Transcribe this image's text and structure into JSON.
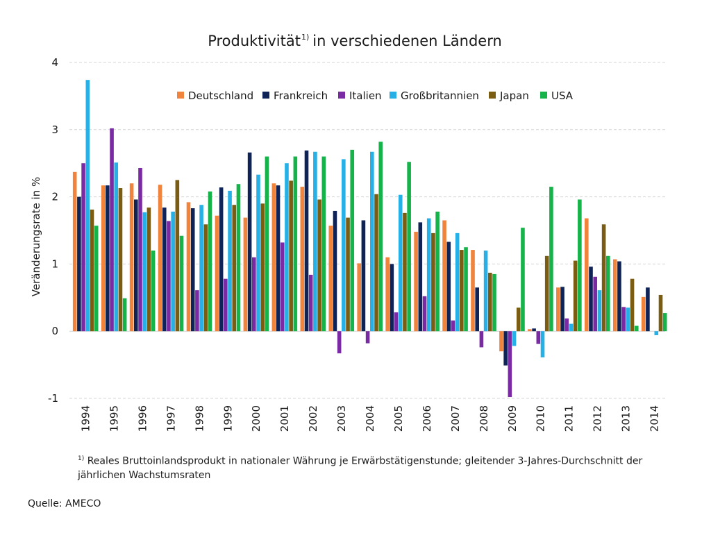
{
  "chart_data": {
    "type": "bar",
    "title": "Produktivität",
    "title_superscript": "1)",
    "title_rest": "in verschiedenen Ländern",
    "ylabel": "Veränderungsrate in %",
    "xlabel": "",
    "ylim": [
      -1,
      4
    ],
    "yticks": [
      -1,
      0,
      1,
      2,
      3,
      4
    ],
    "grid": "horizontal dashed",
    "legend_position": "top",
    "categories": [
      "1994",
      "1995",
      "1996",
      "1997",
      "1998",
      "1999",
      "2000",
      "2001",
      "2002",
      "2003",
      "2004",
      "2005",
      "2006",
      "2007",
      "2008",
      "2009",
      "2010",
      "2011",
      "2012",
      "2013",
      "2014"
    ],
    "series": [
      {
        "name": "Deutschland",
        "color": "#f0843c",
        "values": [
          2.37,
          2.17,
          2.2,
          2.18,
          1.92,
          1.72,
          1.69,
          2.2,
          2.15,
          1.57,
          1.01,
          1.1,
          1.48,
          1.65,
          1.21,
          -0.3,
          0.03,
          0.65,
          1.68,
          1.07,
          0.51
        ]
      },
      {
        "name": "Frankreich",
        "color": "#0f2357",
        "values": [
          2.0,
          2.17,
          1.96,
          1.84,
          1.83,
          2.14,
          2.66,
          2.17,
          2.69,
          1.79,
          1.65,
          1.0,
          1.62,
          1.33,
          0.65,
          -0.51,
          0.04,
          0.66,
          0.96,
          1.04,
          0.65
        ]
      },
      {
        "name": "Italien",
        "color": "#7a2ba3",
        "values": [
          2.5,
          3.02,
          2.43,
          1.64,
          0.61,
          0.78,
          1.1,
          1.32,
          0.84,
          -0.33,
          -0.18,
          0.28,
          0.52,
          0.16,
          -0.24,
          -0.98,
          -0.19,
          0.19,
          0.81,
          0.36,
          0.0
        ]
      },
      {
        "name": "Großbritannien",
        "color": "#26b0e6",
        "values": [
          3.74,
          2.51,
          1.77,
          1.78,
          1.88,
          2.09,
          2.33,
          2.5,
          2.67,
          2.56,
          2.67,
          2.03,
          1.68,
          1.46,
          1.2,
          -0.22,
          -0.39,
          0.11,
          0.61,
          0.35,
          -0.06
        ]
      },
      {
        "name": "Japan",
        "color": "#7a5c12",
        "values": [
          1.81,
          2.13,
          1.84,
          2.25,
          1.59,
          1.88,
          1.9,
          2.24,
          1.96,
          1.69,
          2.04,
          1.76,
          1.46,
          1.21,
          0.87,
          0.35,
          1.12,
          1.05,
          1.59,
          0.78,
          0.54
        ]
      },
      {
        "name": "USA",
        "color": "#16b34a",
        "values": [
          1.57,
          0.49,
          1.2,
          1.42,
          2.08,
          2.19,
          2.6,
          2.6,
          2.6,
          2.7,
          2.82,
          2.52,
          1.78,
          1.25,
          0.85,
          1.54,
          2.15,
          1.96,
          1.12,
          0.08,
          0.27
        ]
      }
    ]
  },
  "footnote": {
    "marker": "1)",
    "text": "Reales Bruttoinlandsprodukt in nationaler Währung je Erwärbstätigenstunde; gleitender 3-Jahres-Durchschnitt der jährlichen Wachstumsraten"
  },
  "source": "Quelle: AMECO"
}
